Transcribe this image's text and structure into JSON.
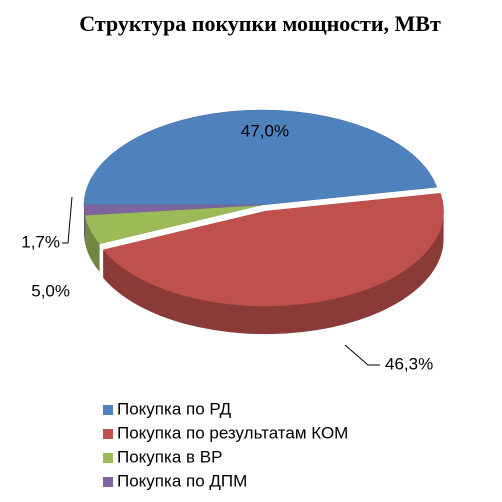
{
  "chart_data": {
    "type": "pie",
    "title": "Структура покупки мощности, МВт",
    "categories": [
      "Покупка по РД",
      "Покупка по результатам КОМ",
      "Покупка в ВР",
      "Покупка по ДПМ"
    ],
    "values": [
      47.0,
      46.3,
      5.0,
      1.7
    ],
    "value_labels": [
      "47,0%",
      "46,3%",
      "5,0%",
      "1,7%"
    ],
    "colors": [
      "#4f81bd",
      "#c0504d",
      "#9bbb59",
      "#8064a2"
    ],
    "legend": "bottom"
  }
}
